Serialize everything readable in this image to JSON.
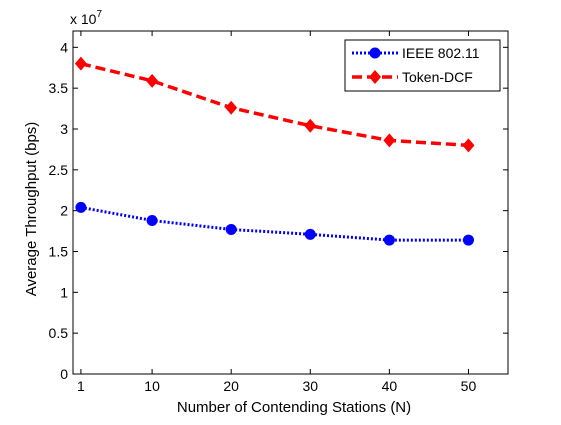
{
  "chart_data": {
    "type": "line",
    "title": "",
    "xlabel": "Number of Contending Stations (N)",
    "ylabel": "Average Throughput (bps)",
    "y_exponent_label": "x 10",
    "y_exponent_power": "7",
    "xlim": [
      0,
      55
    ],
    "ylim": [
      0,
      4.2
    ],
    "x_ticks": [
      1,
      10,
      20,
      30,
      40,
      50
    ],
    "x_tick_labels": [
      "1",
      "10",
      "20",
      "30",
      "40",
      "50"
    ],
    "y_ticks": [
      0,
      0.5,
      1,
      1.5,
      2,
      2.5,
      3,
      3.5,
      4
    ],
    "y_tick_labels": [
      "0",
      "0.5",
      "1",
      "1.5",
      "2",
      "2.5",
      "3",
      "3.5",
      "4"
    ],
    "grid": false,
    "legend_position": "top-right",
    "x": [
      1,
      10,
      20,
      30,
      40,
      50
    ],
    "series": [
      {
        "name": "IEEE 802.11",
        "values": [
          2.04,
          1.88,
          1.77,
          1.71,
          1.64,
          1.64
        ],
        "color": "#0000ff",
        "line_style": "dotted",
        "marker": "circle"
      },
      {
        "name": "Token-DCF",
        "values": [
          3.8,
          3.59,
          3.26,
          3.04,
          2.86,
          2.8
        ],
        "color": "#ff0000",
        "line_style": "dashed",
        "marker": "diamond"
      }
    ]
  }
}
